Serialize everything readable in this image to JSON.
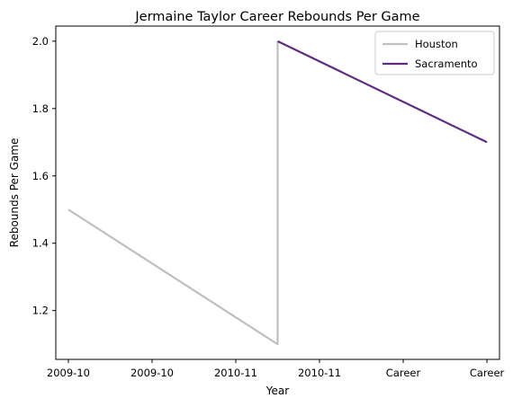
{
  "chart_data": {
    "type": "line",
    "title": "Jermaine Taylor  Career Rebounds Per Game",
    "xlabel": "Year",
    "ylabel": "Rebounds Per Game",
    "x_tick_labels": [
      "2009-10",
      "2009-10",
      "2010-11",
      "2010-11",
      "Career",
      "Career"
    ],
    "y_ticks": [
      1.2,
      1.4,
      1.6,
      1.8,
      2.0
    ],
    "y_tick_labels": [
      "1.2",
      "1.4",
      "1.6",
      "1.8",
      "2.0"
    ],
    "xlim": [
      -0.15,
      5.15
    ],
    "ylim": [
      1.055,
      2.045
    ],
    "grid": false,
    "legend_position": "upper right",
    "series": [
      {
        "name": "Houston",
        "color": "#bfbfbf",
        "x": [
          0,
          2.5,
          2.5
        ],
        "y": [
          1.5,
          1.1,
          2.0
        ]
      },
      {
        "name": "Sacramento",
        "color": "#5e2d7e",
        "x": [
          2.5,
          5
        ],
        "y": [
          2.0,
          1.7
        ]
      }
    ]
  }
}
